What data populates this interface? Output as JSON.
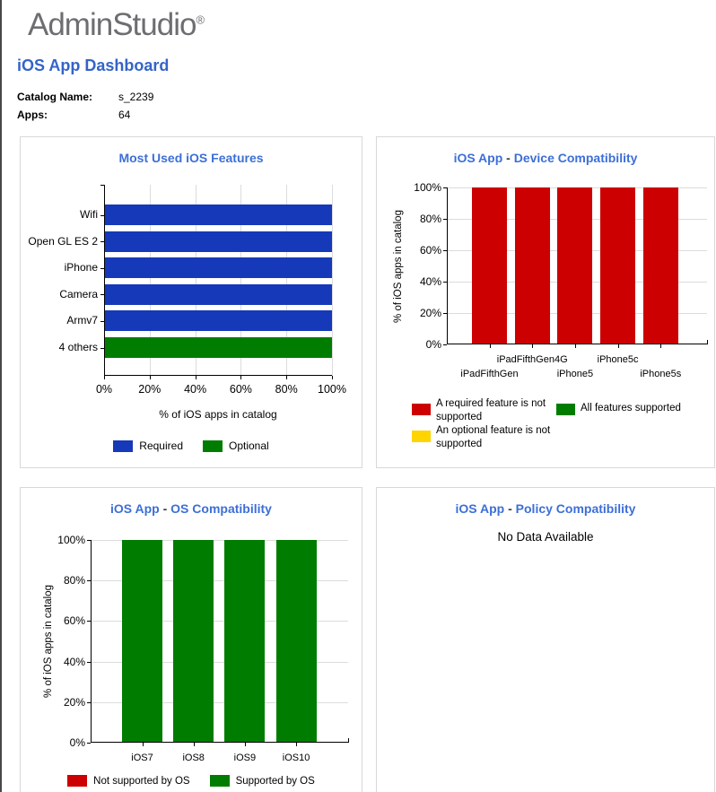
{
  "header": {
    "logo_text": "AdminStudio",
    "logo_reg": "®",
    "title": "iOS App Dashboard",
    "catalog_label": "Catalog Name:",
    "catalog_value": "s_2239",
    "apps_label": "Apps:",
    "apps_value": "64"
  },
  "colors": {
    "required_blue": "#1539B8",
    "supported_green": "#007D00",
    "not_supported_red": "#CC0000",
    "optional_not_supported_yellow": "#FFD400",
    "chart_title_blue": "#3C6FD6",
    "page_title_blue": "#3464C8",
    "logo_gray": "#6D6E71"
  },
  "chart_data": [
    {
      "type": "bar",
      "orientation": "horizontal",
      "title": "Most Used iOS Features",
      "categories": [
        "Wifi",
        "Open GL ES 2",
        "iPhone",
        "Camera",
        "Armv7",
        "4 others"
      ],
      "values": [
        100,
        100,
        100,
        100,
        100,
        100
      ],
      "bar_colors": [
        "#1539B8",
        "#1539B8",
        "#1539B8",
        "#1539B8",
        "#1539B8",
        "#007D00"
      ],
      "xlabel": "% of iOS apps in catalog",
      "xlim": [
        0,
        100
      ],
      "x_ticks": [
        "0%",
        "20%",
        "40%",
        "60%",
        "80%",
        "100%"
      ],
      "grid": true,
      "legend_position": "bottom",
      "legend": [
        {
          "label": "Required",
          "color": "#1539B8"
        },
        {
          "label": "Optional",
          "color": "#007D00"
        }
      ]
    },
    {
      "type": "bar",
      "orientation": "vertical",
      "title": "iOS App - Device Compatibility",
      "title_parts": [
        "iOS App",
        "-",
        "Device Compatibility"
      ],
      "categories": [
        "iPadFifthGen",
        "iPadFifthGen4G",
        "iPhone5",
        "iPhone5c",
        "iPhone5s"
      ],
      "values": [
        100,
        100,
        100,
        100,
        100
      ],
      "bar_color": "#CC0000",
      "ylabel": "% of iOS apps in catalog",
      "ylim": [
        0,
        100
      ],
      "y_ticks": [
        "0%",
        "20%",
        "40%",
        "60%",
        "80%",
        "100%"
      ],
      "grid": true,
      "legend_position": "bottom",
      "legend": [
        {
          "label": "A required feature is not supported",
          "color": "#CC0000"
        },
        {
          "label": "All features supported",
          "color": "#007D00"
        },
        {
          "label": "An optional feature is not supported",
          "color": "#FFD400"
        }
      ]
    },
    {
      "type": "bar",
      "orientation": "vertical",
      "title": "iOS App - OS Compatibility",
      "title_parts": [
        "iOS App",
        "-",
        "OS Compatibility"
      ],
      "categories": [
        "iOS7",
        "iOS8",
        "iOS9",
        "iOS10"
      ],
      "values": [
        100,
        100,
        100,
        100
      ],
      "bar_color": "#007D00",
      "ylabel": "% of iOS apps in catalog",
      "ylim": [
        0,
        100
      ],
      "y_ticks": [
        "0%",
        "20%",
        "40%",
        "60%",
        "80%",
        "100%"
      ],
      "grid": true,
      "legend_position": "bottom",
      "legend": [
        {
          "label": "Not supported by OS",
          "color": "#CC0000"
        },
        {
          "label": "Supported by OS",
          "color": "#007D00"
        }
      ]
    },
    {
      "type": "none",
      "title": "iOS App - Policy Compatibility",
      "title_parts": [
        "iOS App",
        "-",
        "Policy Compatibility"
      ],
      "message": "No Data Available"
    }
  ]
}
